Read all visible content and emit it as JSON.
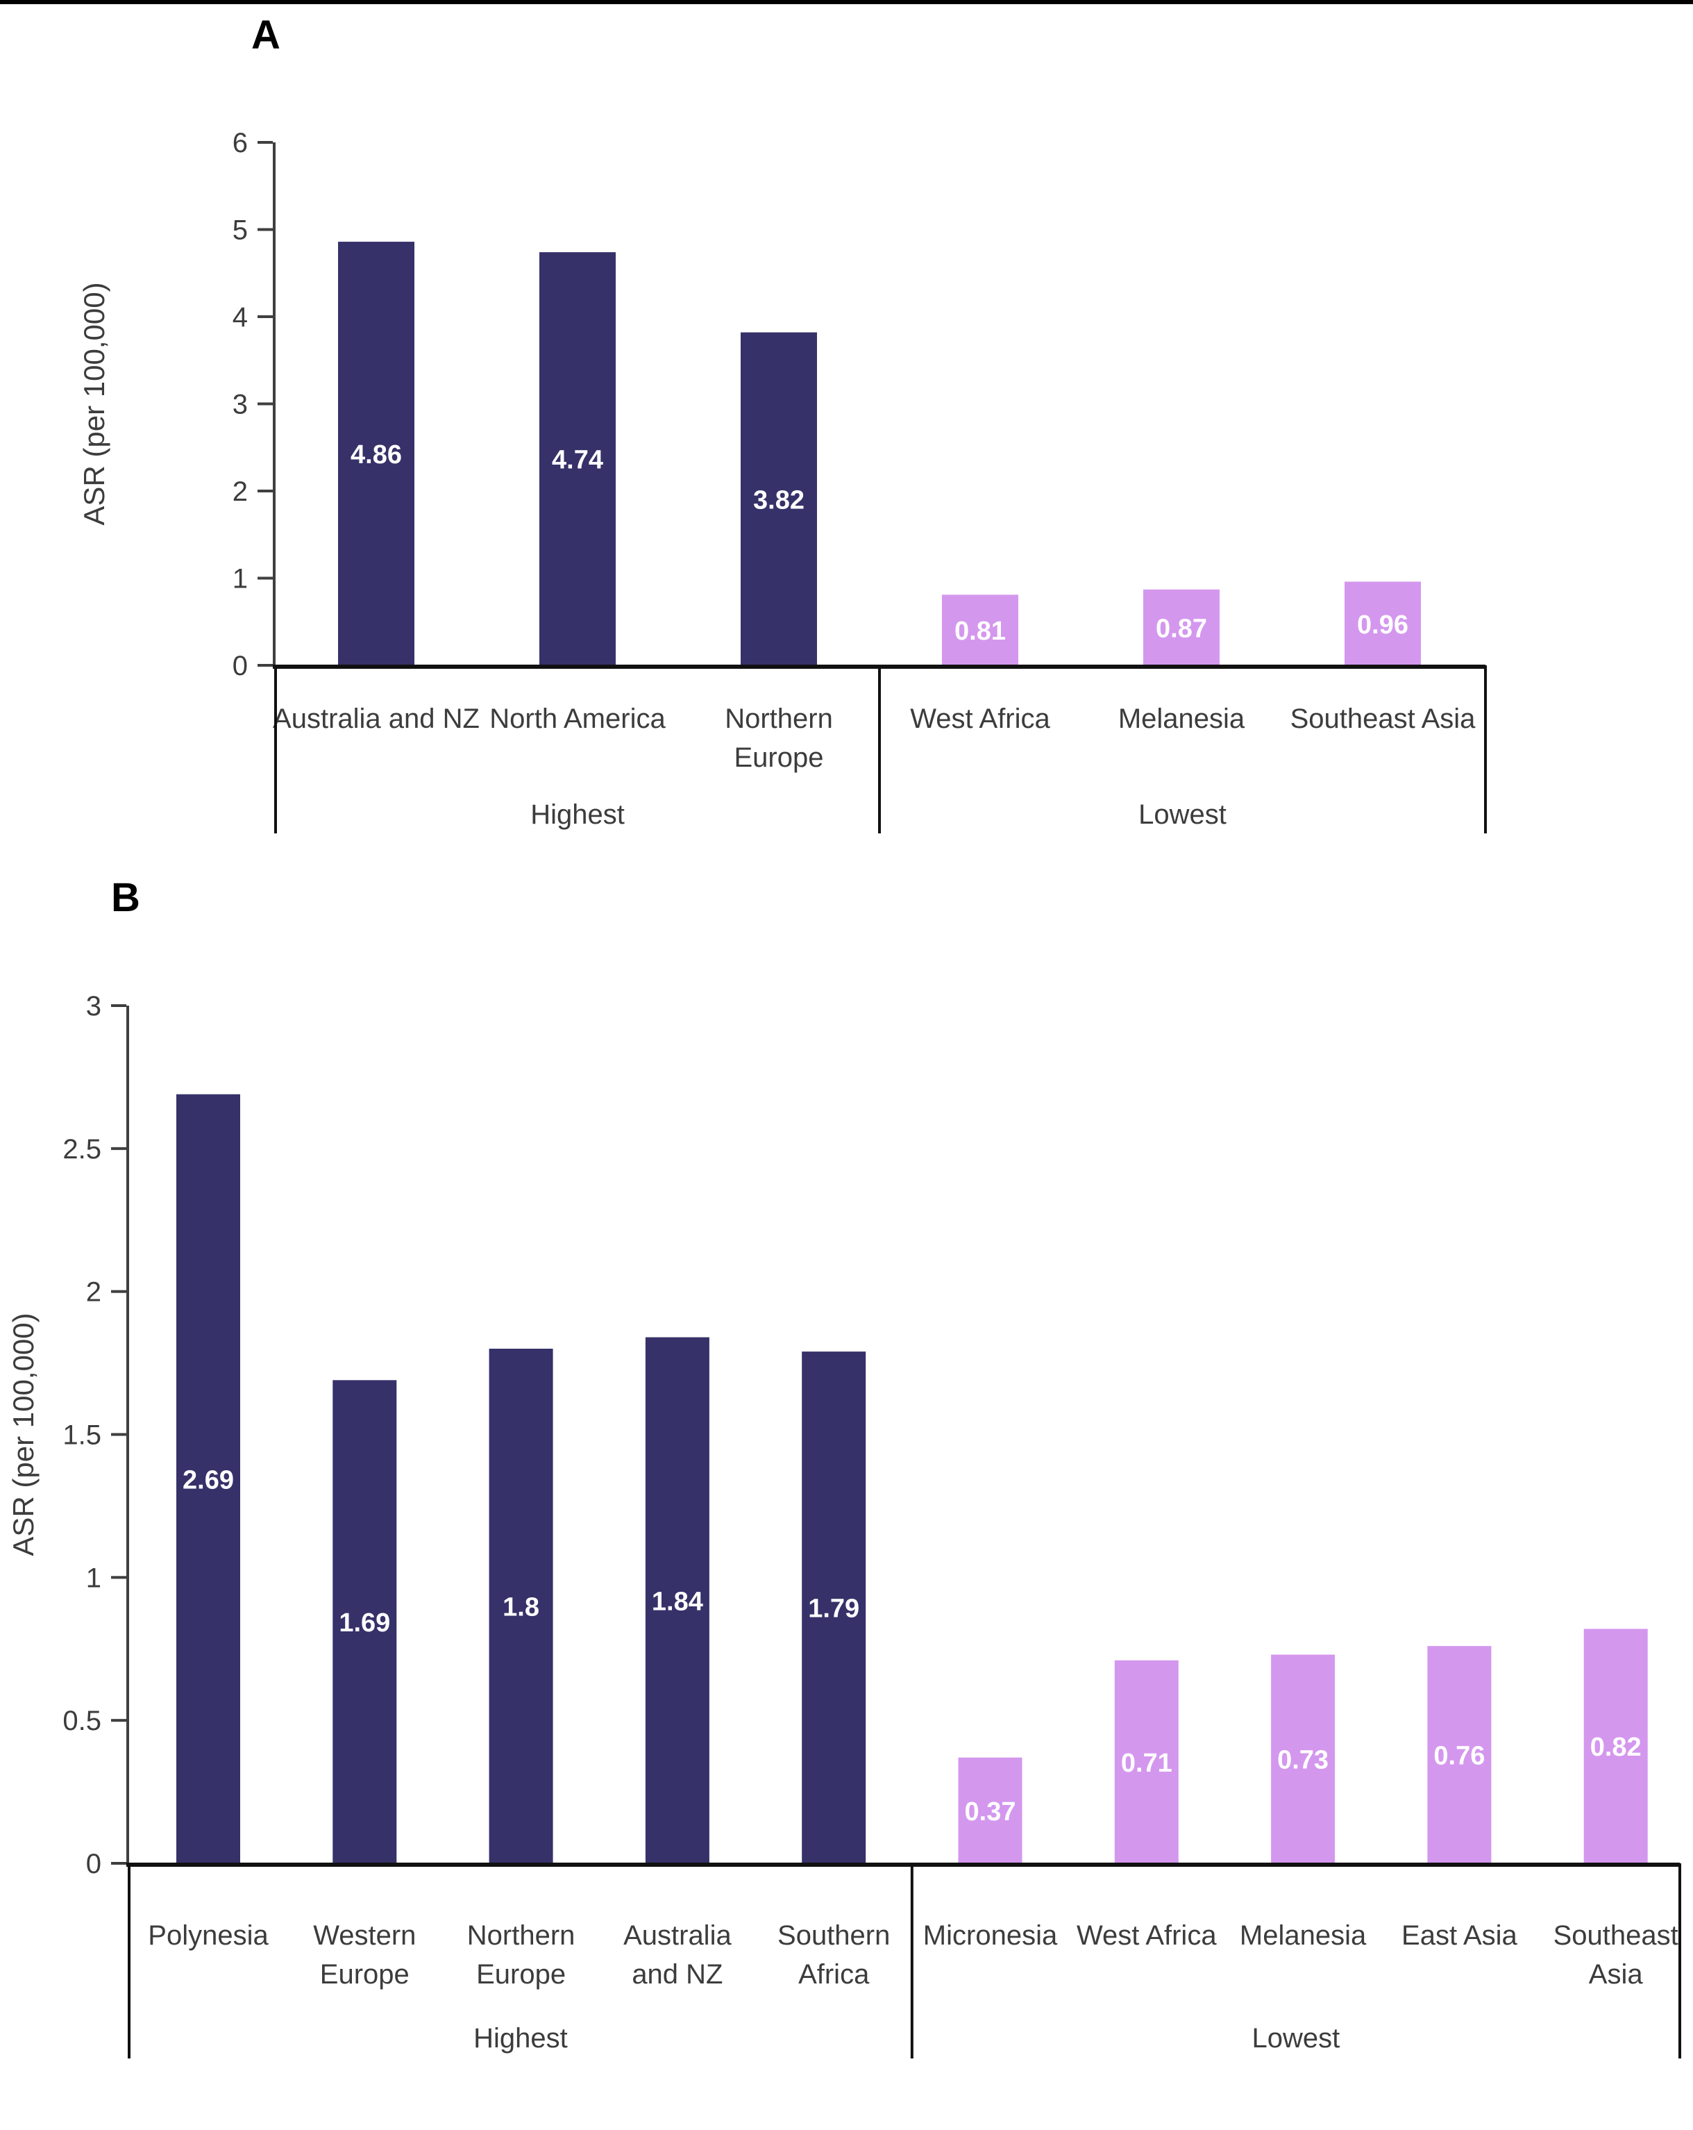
{
  "page": {
    "background": "#ffffff",
    "top_strip_color": "#000000"
  },
  "chart_data": [
    {
      "type": "bar",
      "panel_label": "A",
      "ylabel": "ASR (per 100,000)",
      "ylim": [
        0,
        6
      ],
      "grid": false,
      "legend": "none",
      "yticks": [
        0,
        1,
        2,
        3,
        4,
        5,
        6
      ],
      "ytick_labels": [
        "0",
        "1",
        "2",
        "3",
        "4",
        "5",
        "6"
      ],
      "value_label_color": "#ffffff",
      "axis_color": "#3f3f3f",
      "line_color": "#111111",
      "text_color": "#3c3c3c",
      "groups": [
        {
          "label": "Highest",
          "bar_color": "#363169",
          "bars": [
            {
              "category": "Australia and NZ",
              "lines": [
                "Australia and NZ"
              ],
              "value": 4.86,
              "value_label": "4.86"
            },
            {
              "category": "North America",
              "lines": [
                "North America"
              ],
              "value": 4.74,
              "value_label": "4.74"
            },
            {
              "category": "Northern Europe",
              "lines": [
                "Northern",
                "Europe"
              ],
              "value": 3.82,
              "value_label": "3.82"
            }
          ]
        },
        {
          "label": "Lowest",
          "bar_color": "#D497EE",
          "bars": [
            {
              "category": "West Africa",
              "lines": [
                "West Africa"
              ],
              "value": 0.81,
              "value_label": "0.81"
            },
            {
              "category": "Melanesia",
              "lines": [
                "Melanesia"
              ],
              "value": 0.87,
              "value_label": "0.87"
            },
            {
              "category": "Southeast Asia",
              "lines": [
                "Southeast Asia"
              ],
              "value": 0.96,
              "value_label": "0.96"
            }
          ]
        }
      ]
    },
    {
      "type": "bar",
      "panel_label": "B",
      "ylabel": "ASR (per 100,000)",
      "ylim": [
        0,
        3
      ],
      "grid": false,
      "legend": "none",
      "yticks": [
        0,
        0.5,
        1,
        1.5,
        2,
        2.5,
        3
      ],
      "ytick_labels": [
        "0",
        "0.5",
        "1",
        "1.5",
        "2",
        "2.5",
        "3"
      ],
      "value_label_color": "#ffffff",
      "axis_color": "#3f3f3f",
      "line_color": "#111111",
      "text_color": "#3c3c3c",
      "groups": [
        {
          "label": "Highest",
          "bar_color": "#363169",
          "bars": [
            {
              "category": "Polynesia",
              "lines": [
                "Polynesia"
              ],
              "value": 2.69,
              "value_label": "2.69"
            },
            {
              "category": "Western Europe",
              "lines": [
                "Western",
                "Europe"
              ],
              "value": 1.69,
              "value_label": "1.69"
            },
            {
              "category": "Northern Europe",
              "lines": [
                "Northern",
                "Europe"
              ],
              "value": 1.8,
              "value_label": "1.8"
            },
            {
              "category": "Australia and NZ",
              "lines": [
                "Australia",
                "and NZ"
              ],
              "value": 1.84,
              "value_label": "1.84"
            },
            {
              "category": "Southern Africa",
              "lines": [
                "Southern",
                "Africa"
              ],
              "value": 1.79,
              "value_label": "1.79"
            }
          ]
        },
        {
          "label": "Lowest",
          "bar_color": "#D497EE",
          "bars": [
            {
              "category": "Micronesia",
              "lines": [
                "Micronesia"
              ],
              "value": 0.37,
              "value_label": "0.37"
            },
            {
              "category": "West Africa",
              "lines": [
                "West Africa"
              ],
              "value": 0.71,
              "value_label": "0.71"
            },
            {
              "category": "Melanesia",
              "lines": [
                "Melanesia"
              ],
              "value": 0.73,
              "value_label": "0.73"
            },
            {
              "category": "East Asia",
              "lines": [
                "East Asia"
              ],
              "value": 0.76,
              "value_label": "0.76"
            },
            {
              "category": "Southeast Asia",
              "lines": [
                "Southeast",
                "Asia"
              ],
              "value": 0.82,
              "value_label": "0.82"
            }
          ]
        }
      ]
    }
  ]
}
